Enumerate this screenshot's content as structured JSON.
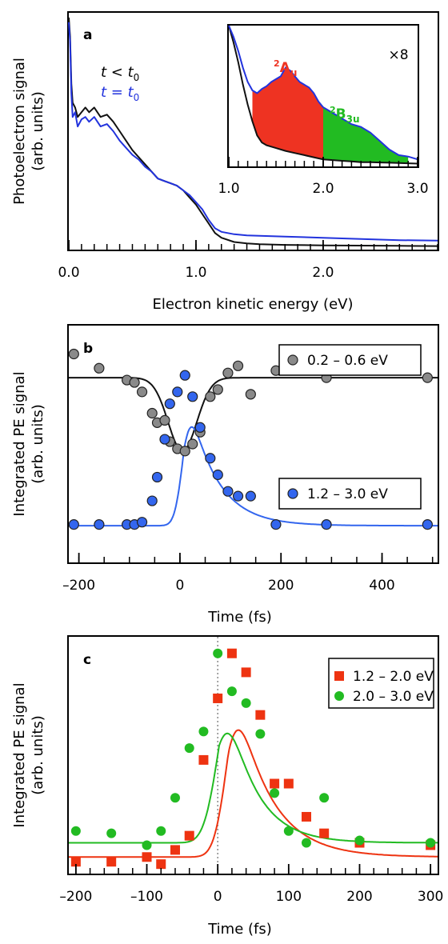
{
  "chart_data": [
    {
      "panel": "a",
      "type": "line",
      "xlabel": "Electron kinetic energy (eV)",
      "ylabel_lines": [
        "Photoelectron signal",
        "(arb. units)"
      ],
      "xlim": [
        0.0,
        2.9
      ],
      "ylim": [
        0,
        100
      ],
      "xticks": [
        0.0,
        1.0,
        2.0
      ],
      "xticklabels": [
        "0.0",
        "1.0",
        "2.0"
      ],
      "legend": {
        "placement": "upper-left",
        "entries": [
          {
            "prefix": "t",
            "rel": "<",
            "var": "t",
            "sub": "0",
            "color": "#000000"
          },
          {
            "prefix": "t",
            "rel": "=",
            "var": "t",
            "sub": "0",
            "color": "#2233dd"
          }
        ]
      },
      "series": [
        {
          "name": "t < t0",
          "color": "#111111",
          "x": [
            0.0,
            0.01,
            0.02,
            0.03,
            0.05,
            0.07,
            0.1,
            0.13,
            0.16,
            0.2,
            0.25,
            0.3,
            0.35,
            0.4,
            0.45,
            0.5,
            0.55,
            0.6,
            0.65,
            0.7,
            0.75,
            0.8,
            0.85,
            0.9,
            0.95,
            1.0,
            1.05,
            1.1,
            1.15,
            1.2,
            1.3,
            1.4,
            1.5,
            1.7,
            2.0,
            2.3,
            2.6,
            2.9
          ],
          "y": [
            98,
            90,
            70,
            62,
            60,
            56,
            58,
            60,
            58,
            60,
            56,
            57,
            54,
            50,
            46,
            42,
            39,
            36,
            33,
            30,
            29,
            28,
            27,
            25,
            22,
            19,
            15,
            11,
            7,
            5,
            3.2,
            2.6,
            2.3,
            2.0,
            1.8,
            1.7,
            1.6,
            1.5
          ]
        },
        {
          "name": "t = t0",
          "color": "#2233dd",
          "x": [
            0.0,
            0.01,
            0.02,
            0.03,
            0.05,
            0.07,
            0.1,
            0.13,
            0.16,
            0.2,
            0.25,
            0.3,
            0.35,
            0.4,
            0.45,
            0.5,
            0.55,
            0.6,
            0.65,
            0.7,
            0.75,
            0.8,
            0.85,
            0.9,
            0.95,
            1.0,
            1.05,
            1.1,
            1.15,
            1.2,
            1.3,
            1.4,
            1.5,
            1.7,
            2.0,
            2.3,
            2.6,
            2.9
          ],
          "y": [
            96,
            88,
            66,
            56,
            58,
            52,
            55,
            56,
            54,
            56,
            52,
            53,
            50,
            46,
            43,
            40,
            38,
            35,
            33,
            30,
            29,
            28,
            27,
            25,
            23,
            20,
            17,
            12.5,
            9,
            7.5,
            6.5,
            6,
            5.8,
            5.5,
            5,
            4.5,
            4,
            3.8
          ]
        }
      ],
      "inset": {
        "xlim": [
          1.0,
          3.0
        ],
        "ylim": [
          0,
          100
        ],
        "xticks": [
          1.0,
          2.0,
          3.0
        ],
        "xticklabels": [
          "1.0",
          "2.0",
          "3.0"
        ],
        "scale_label": "×8",
        "bands": [
          {
            "name": "²Aᵤ",
            "base": "A",
            "sub": "u",
            "sup": "2",
            "x_from": 1.25,
            "x_to": 2.0,
            "color": "#ee3322"
          },
          {
            "name": "²B₃ᵤ",
            "base": "B",
            "sub": "3u",
            "sup": "2",
            "x_from": 2.0,
            "x_to": 2.9,
            "color": "#22bb22"
          }
        ],
        "lower": {
          "x": [
            1.0,
            1.05,
            1.1,
            1.15,
            1.2,
            1.25,
            1.3,
            1.35,
            1.4,
            1.5,
            1.6,
            1.7,
            1.8,
            1.9,
            2.0,
            2.1,
            2.2,
            2.3,
            2.4,
            2.5,
            2.6,
            2.7,
            2.8,
            2.9,
            3.0
          ],
          "y": [
            100,
            88,
            74,
            58,
            44,
            32,
            22,
            17,
            15,
            13,
            11,
            9.5,
            8,
            6.5,
            5,
            4.5,
            4,
            3.5,
            3,
            3,
            2.8,
            2.6,
            2.4,
            2.2,
            2.0
          ]
        },
        "upper": {
          "x": [
            1.0,
            1.05,
            1.1,
            1.15,
            1.2,
            1.25,
            1.3,
            1.35,
            1.4,
            1.45,
            1.5,
            1.55,
            1.6,
            1.65,
            1.7,
            1.75,
            1.8,
            1.85,
            1.9,
            1.95,
            2.0,
            2.1,
            2.2,
            2.3,
            2.4,
            2.5,
            2.6,
            2.7,
            2.8,
            2.9,
            3.0
          ],
          "y": [
            100,
            92,
            82,
            70,
            60,
            54,
            52,
            55,
            57,
            60,
            62,
            64,
            70,
            68,
            64,
            60,
            58,
            56,
            52,
            46,
            42,
            38,
            34,
            30,
            28,
            24,
            18,
            12,
            8,
            7,
            5
          ]
        }
      }
    },
    {
      "panel": "b",
      "type": "scatter",
      "xlabel": "Time (fs)",
      "ylabel_lines": [
        "Integrated PE signal",
        "(arb. units)"
      ],
      "xlim": [
        -220,
        510
      ],
      "ylim": [
        0,
        100
      ],
      "xticks": [
        -200,
        0,
        200,
        400
      ],
      "xticklabels": [
        "–200",
        "0",
        "200",
        "400"
      ],
      "legend_placement": "right",
      "series": [
        {
          "name": "0.2 – 0.6 eV",
          "color": "#8a8a8a",
          "x": [
            -210,
            -160,
            -105,
            -90,
            -75,
            -55,
            -45,
            -30,
            -20,
            -5,
            10,
            25,
            40,
            60,
            75,
            95,
            115,
            140,
            190,
            290,
            490
          ],
          "y": [
            88,
            82,
            77,
            76,
            72,
            63,
            59,
            60,
            51,
            48,
            47,
            50,
            55,
            70,
            73,
            80,
            83,
            71,
            81,
            78,
            78
          ],
          "fit": {
            "baseline": 78,
            "depth": 31,
            "center": 5,
            "width": 40
          }
        },
        {
          "name": "1.2 – 3.0 eV",
          "color": "#3366ee",
          "x": [
            -210,
            -160,
            -105,
            -90,
            -75,
            -55,
            -45,
            -30,
            -20,
            -5,
            10,
            25,
            40,
            60,
            75,
            95,
            115,
            140,
            190,
            290,
            490
          ],
          "y": [
            16,
            16,
            16,
            16,
            17,
            26,
            36,
            52,
            67,
            72,
            79,
            70,
            57,
            44,
            37,
            30,
            28,
            28,
            16,
            16,
            16
          ],
          "fit": {
            "baseline": 15.5,
            "amplitude": 64,
            "center": 8,
            "width": 20,
            "decay": 55
          }
        }
      ]
    },
    {
      "panel": "c",
      "type": "scatter",
      "xlabel": "Time (fs)",
      "ylabel_lines": [
        "Integrated PE signal",
        "(arb. units)"
      ],
      "xlim": [
        -210,
        310
      ],
      "ylim": [
        0,
        100
      ],
      "xticks": [
        -200,
        -100,
        0,
        100,
        200,
        300
      ],
      "xticklabels": [
        "–200",
        "–100",
        "0",
        "100",
        "200",
        "300"
      ],
      "legend_placement": "top-right",
      "zero_line": 0,
      "series": [
        {
          "name": "1.2 – 2.0 eV",
          "color": "#ee3311",
          "marker": "square",
          "x": [
            -200,
            -150,
            -100,
            -80,
            -60,
            -40,
            -20,
            0,
            20,
            40,
            60,
            80,
            100,
            125,
            150,
            200,
            300
          ],
          "y": [
            5,
            5,
            7,
            4,
            10,
            16,
            48,
            74,
            93,
            85,
            67,
            38,
            38,
            24,
            17,
            13,
            12
          ],
          "fit": {
            "baseline": 7,
            "amplitude": 88,
            "center": 15,
            "width": 22,
            "decay": 48
          }
        },
        {
          "name": "2.0 – 3.0 eV",
          "color": "#22bb22",
          "marker": "circle",
          "x": [
            -200,
            -150,
            -100,
            -80,
            -60,
            -40,
            -20,
            0,
            20,
            40,
            60,
            80,
            100,
            125,
            150,
            200,
            300
          ],
          "y": [
            18,
            17,
            12,
            18,
            32,
            53,
            60,
            93,
            77,
            72,
            59,
            34,
            18,
            13,
            32,
            14,
            13
          ],
          "fit": {
            "baseline": 13,
            "amplitude": 82,
            "center": 2,
            "width": 24,
            "decay": 40
          }
        }
      ]
    }
  ]
}
